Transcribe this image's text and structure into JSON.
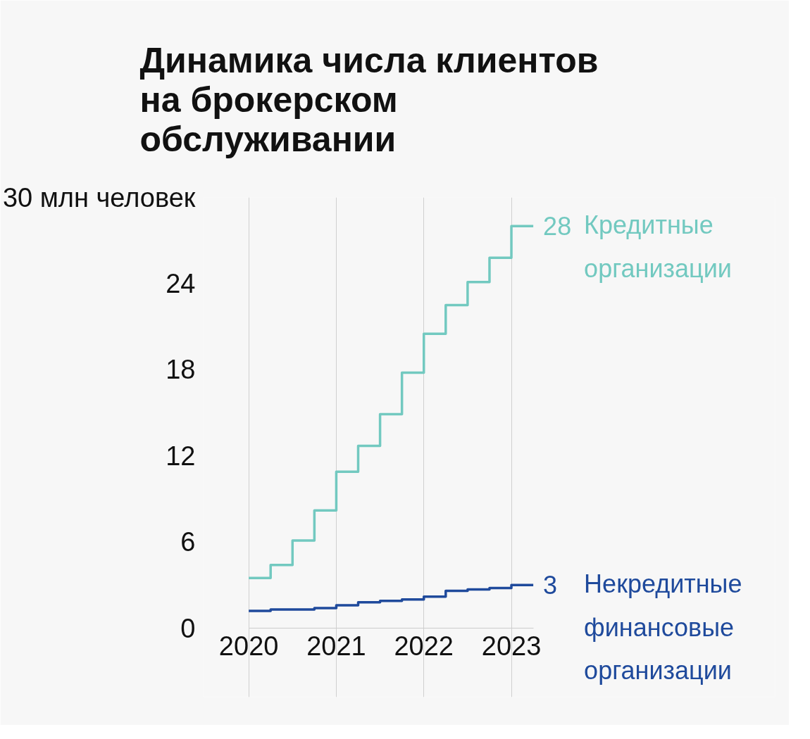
{
  "chart_data": {
    "type": "step",
    "title": "Динамика числа клиентов\nна брокерском\nобслуживании",
    "x": [
      2020,
      2020.25,
      2020.5,
      2020.75,
      2021,
      2021.25,
      2021.5,
      2021.75,
      2022,
      2022.25,
      2022.5,
      2022.75,
      2023,
      2023.25
    ],
    "series": [
      {
        "name": "Кредитные\nорганизации",
        "color": "#72c9c0",
        "values": [
          3.5,
          4.4,
          6.1,
          8.2,
          10.9,
          12.7,
          14.9,
          17.8,
          20.5,
          22.5,
          24.1,
          25.8,
          28,
          28
        ],
        "value_labels": [
          null,
          null,
          null,
          null,
          null,
          null,
          null,
          null,
          null,
          null,
          null,
          null,
          null,
          "28"
        ]
      },
      {
        "name": "Некредитные\nфинансовые\nорганизации",
        "color": "#1f4a9c",
        "values": [
          1.2,
          1.3,
          1.3,
          1.4,
          1.6,
          1.8,
          1.9,
          2.0,
          2.2,
          2.6,
          2.7,
          2.8,
          3,
          3
        ],
        "value_labels": [
          null,
          null,
          null,
          null,
          null,
          null,
          null,
          null,
          null,
          null,
          null,
          null,
          null,
          "3"
        ]
      }
    ],
    "xlim": [
      2020,
      2023.25
    ],
    "xticks": [
      2020,
      2021,
      2022,
      2023
    ],
    "ylim": [
      0,
      30
    ],
    "yticks": [
      0,
      6,
      12,
      18,
      24,
      {
        "value": 30,
        "label": "30 млн человек"
      }
    ],
    "grid": "x"
  }
}
